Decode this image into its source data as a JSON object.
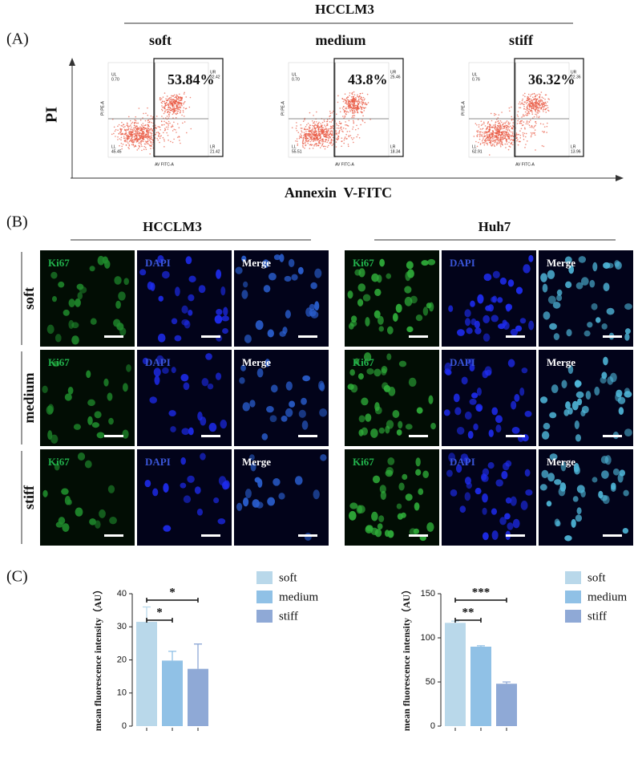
{
  "panel_a": {
    "label": "(A)",
    "title": "HCCLM3",
    "columns": [
      "soft",
      "medium",
      "stiff"
    ],
    "percentages": [
      "53.84%",
      "43.8%",
      "36.32%"
    ],
    "quadrant_names": [
      "UL",
      "UR",
      "LL",
      "LR"
    ],
    "quadrants": [
      {
        "UL": "0.70",
        "UR": "32.42",
        "LL": "45.45",
        "LR": "21.42"
      },
      {
        "UL": "0.70",
        "UR": "25.46",
        "LL": "55.51",
        "LR": "18.34"
      },
      {
        "UL": "0.76",
        "UR": "22.36",
        "LL": "62.91",
        "LR": "13.96"
      }
    ],
    "plot_y_label": "PI PE-A",
    "plot_x_label": "AV FITC-A",
    "y_label": "PI",
    "x_label": "Annexin  V-FITC"
  },
  "panel_b": {
    "label": "(B)",
    "groups": [
      "HCCLM3",
      "Huh7"
    ],
    "rows": [
      "soft",
      "medium",
      "stiff"
    ],
    "channels": [
      "Ki67",
      "DAPI",
      "Merge"
    ]
  },
  "panel_c": {
    "label": "(C)"
  },
  "chart_data": [
    {
      "type": "bar",
      "y_label": "mean fluorescence intensity（AU）",
      "ylim": [
        0,
        40
      ],
      "yticks": [
        0,
        10,
        20,
        30,
        40
      ],
      "series": [
        {
          "name": "soft",
          "color": "#b9d8ea",
          "values": [
            31.5
          ],
          "errors": [
            4.5
          ]
        },
        {
          "name": "medium",
          "color": "#90c1e6",
          "values": [
            19.8
          ],
          "errors": [
            2.8
          ]
        },
        {
          "name": "stiff",
          "color": "#8fa9d6",
          "values": [
            17.3
          ],
          "errors": [
            7.5
          ]
        }
      ],
      "annotations": [
        "*",
        "*"
      ]
    },
    {
      "type": "bar",
      "y_label": "mean fluorescence intensity（AU）",
      "ylim": [
        0,
        150
      ],
      "yticks": [
        0,
        50,
        100,
        150
      ],
      "series": [
        {
          "name": "soft",
          "color": "#b9d8ea",
          "values": [
            117
          ],
          "errors": [
            2
          ]
        },
        {
          "name": "medium",
          "color": "#90c1e6",
          "values": [
            90
          ],
          "errors": [
            1
          ]
        },
        {
          "name": "stiff",
          "color": "#8fa9d6",
          "values": [
            48
          ],
          "errors": [
            2
          ]
        }
      ],
      "annotations": [
        "**",
        "***"
      ]
    }
  ]
}
